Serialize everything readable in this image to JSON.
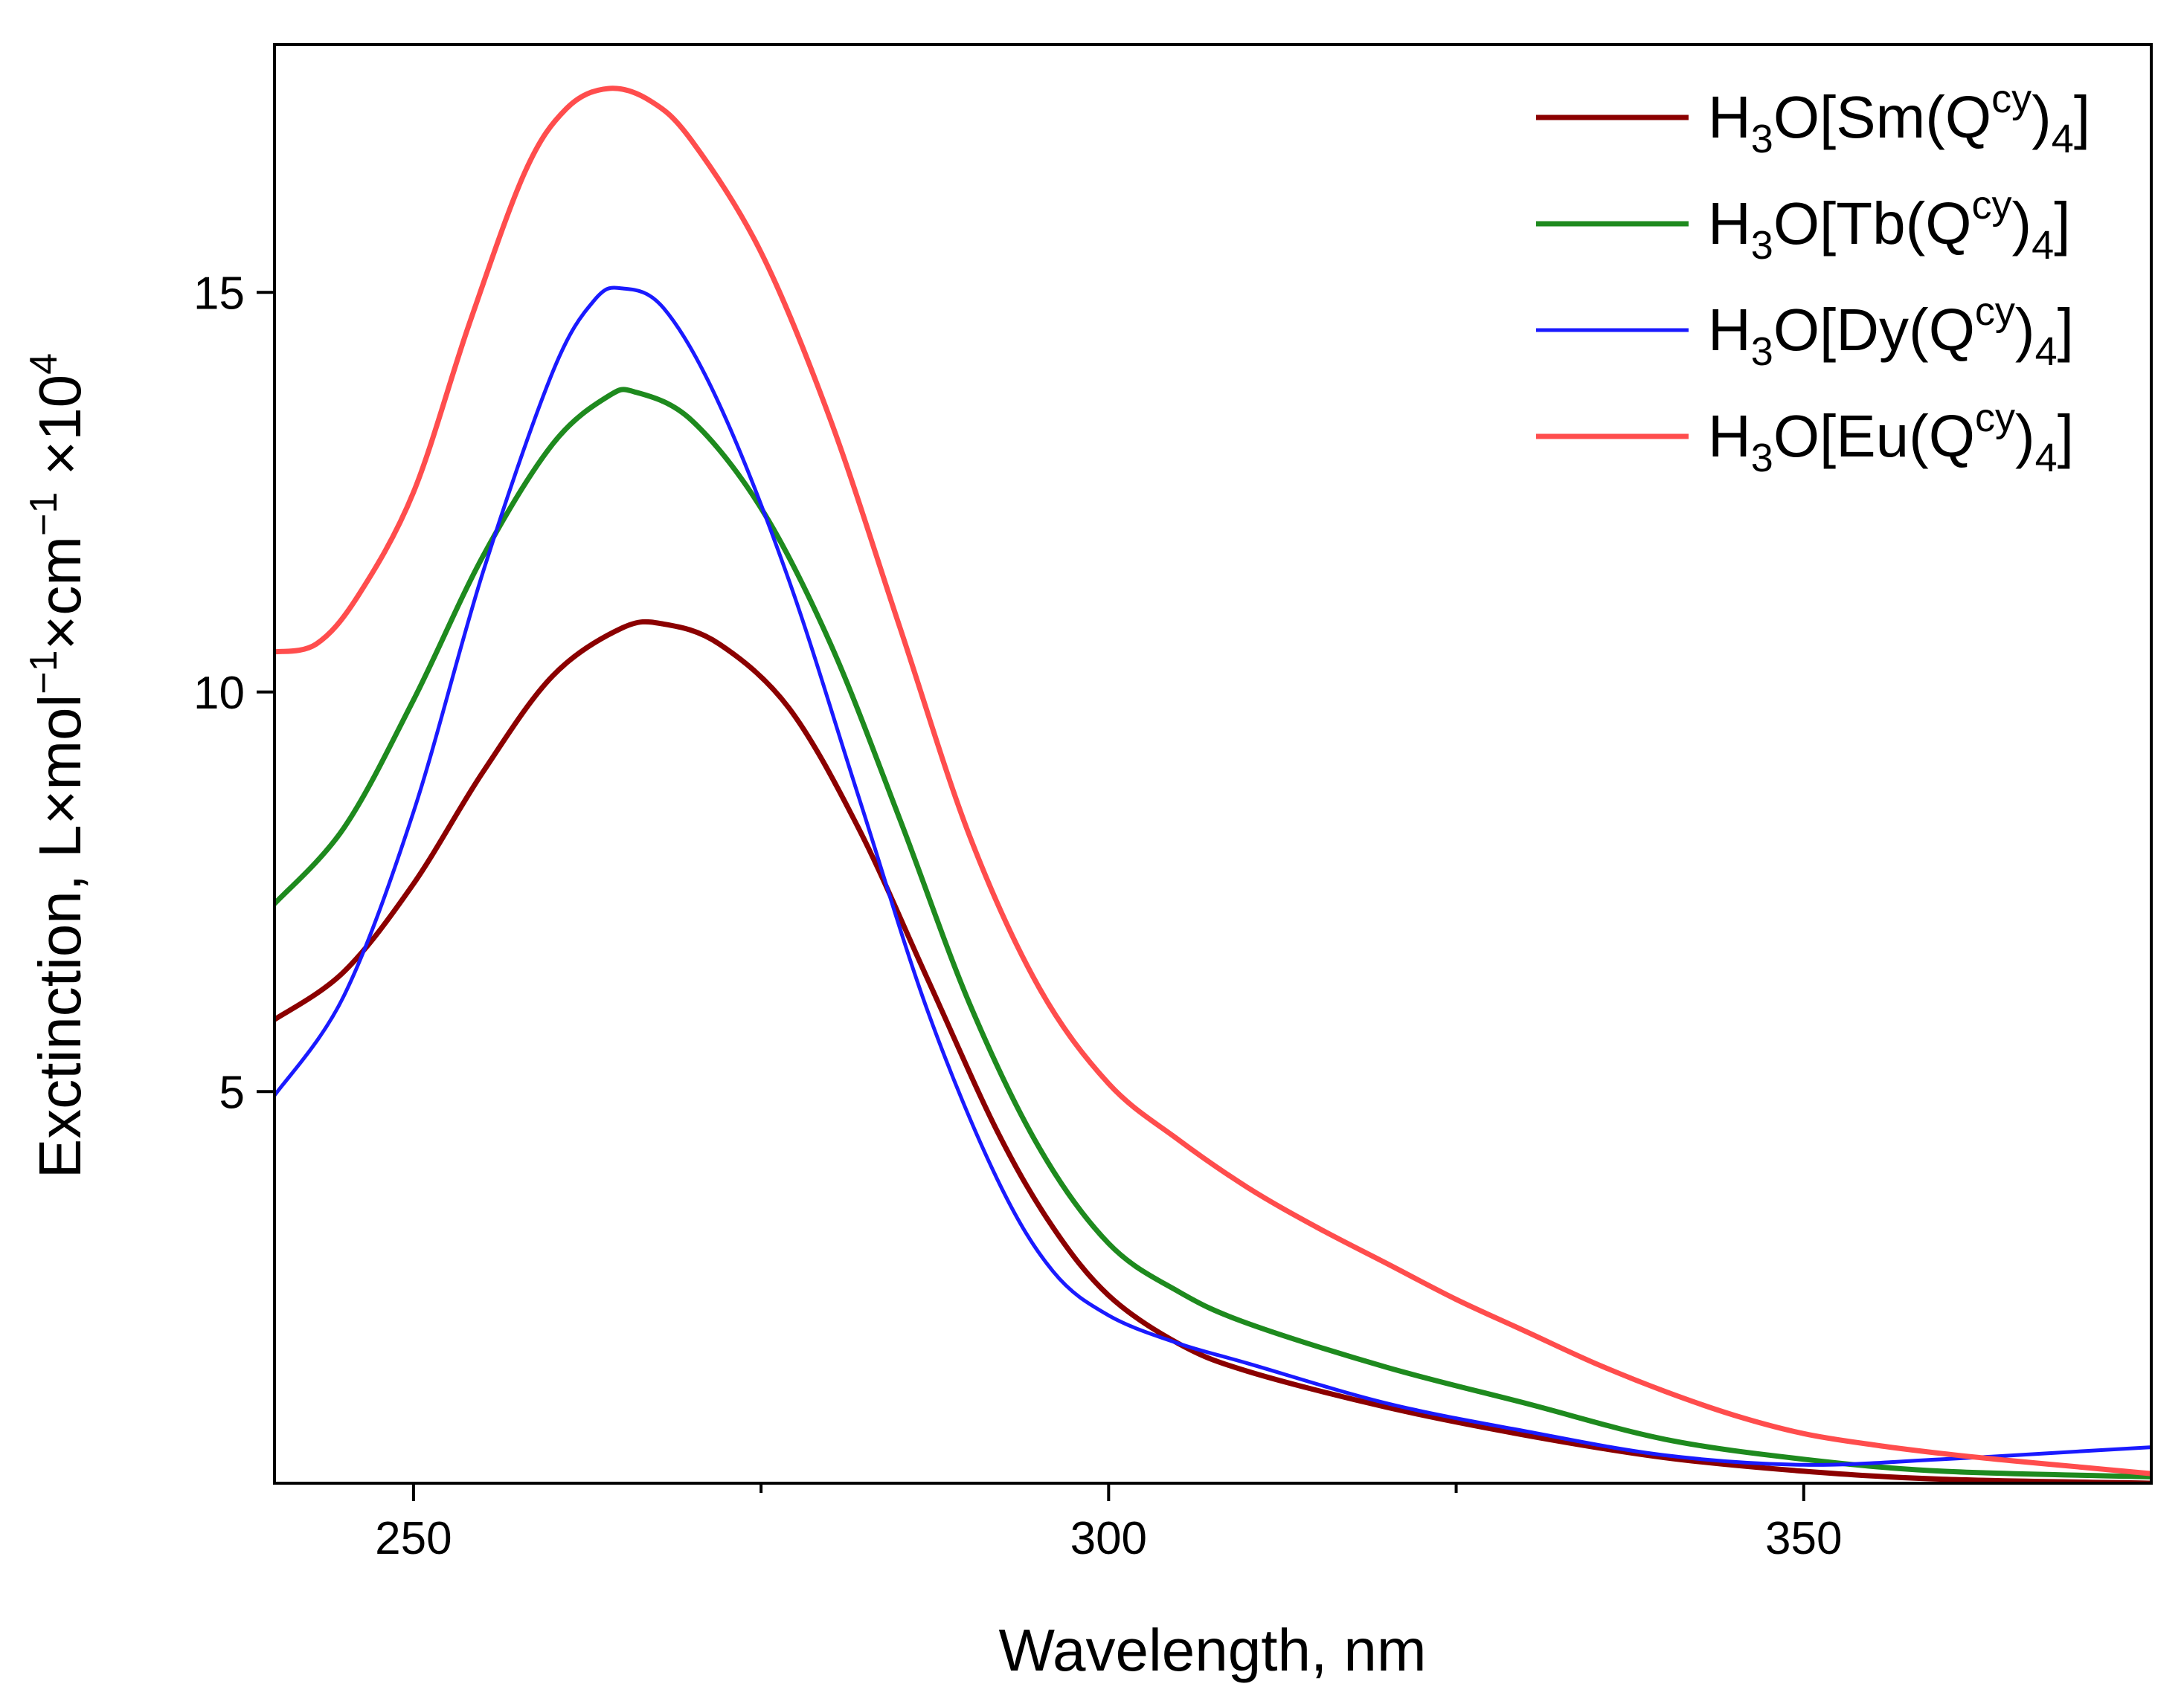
{
  "chart_data": {
    "type": "line",
    "xlabel": "Wavelength, nm",
    "ylabel": {
      "main": "Exctinction, L×mol",
      "sup1": "−1",
      "mid": "×cm",
      "sup2": "−1",
      "tail": " ×10",
      "sup3": "4"
    },
    "xlim": [
      240,
      375
    ],
    "ylim": [
      0.1,
      18.1
    ],
    "xticks_major": [
      250,
      300,
      350
    ],
    "xticks_minor": [
      275,
      325
    ],
    "yticks": [
      5,
      10,
      15
    ],
    "grid": false,
    "legend_position": "top-right",
    "series": [
      {
        "name": "H3O[Sm(Qcy)4]",
        "label_parts": {
          "pre": "H",
          "sub1": "3",
          "mid": "O[Sm(Q",
          "sup": "cy",
          "post": ")",
          "sub2": "4",
          "end": "]"
        },
        "color": "#8b0000",
        "width": 7,
        "points": [
          [
            240,
            5.9
          ],
          [
            245,
            6.5
          ],
          [
            250,
            7.6
          ],
          [
            255,
            9.0
          ],
          [
            260,
            10.2
          ],
          [
            265,
            10.8
          ],
          [
            268,
            10.85
          ],
          [
            272,
            10.6
          ],
          [
            277,
            9.8
          ],
          [
            282,
            8.3
          ],
          [
            287,
            6.4
          ],
          [
            292,
            4.5
          ],
          [
            296,
            3.3
          ],
          [
            300,
            2.45
          ],
          [
            305,
            1.85
          ],
          [
            310,
            1.5
          ],
          [
            320,
            1.05
          ],
          [
            330,
            0.7
          ],
          [
            340,
            0.42
          ],
          [
            350,
            0.25
          ],
          [
            360,
            0.15
          ],
          [
            375,
            0.1
          ]
        ]
      },
      {
        "name": "H3O[Tb(Qcy)4]",
        "label_parts": {
          "pre": "H",
          "sub1": "3",
          "mid": "O[Tb(Q",
          "sup": "cy",
          "post": ")",
          "sub2": "4",
          "end": "]"
        },
        "color": "#1e8a1e",
        "width": 7,
        "points": [
          [
            240,
            7.35
          ],
          [
            245,
            8.3
          ],
          [
            250,
            9.9
          ],
          [
            255,
            11.7
          ],
          [
            260,
            13.1
          ],
          [
            264,
            13.7
          ],
          [
            266,
            13.75
          ],
          [
            270,
            13.4
          ],
          [
            275,
            12.3
          ],
          [
            280,
            10.6
          ],
          [
            285,
            8.4
          ],
          [
            290,
            6.1
          ],
          [
            295,
            4.3
          ],
          [
            300,
            3.1
          ],
          [
            305,
            2.5
          ],
          [
            310,
            2.1
          ],
          [
            320,
            1.55
          ],
          [
            330,
            1.1
          ],
          [
            340,
            0.65
          ],
          [
            350,
            0.4
          ],
          [
            360,
            0.25
          ],
          [
            375,
            0.18
          ]
        ]
      },
      {
        "name": "H3O[Dy(Qcy)4]",
        "label_parts": {
          "pre": "H",
          "sub1": "3",
          "mid": "O[Dy(Q",
          "sup": "cy",
          "post": ")",
          "sub2": "4",
          "end": "]"
        },
        "color": "#1a1aff",
        "width": 5,
        "points": [
          [
            240,
            4.95
          ],
          [
            245,
            6.2
          ],
          [
            250,
            8.5
          ],
          [
            255,
            11.5
          ],
          [
            260,
            14.0
          ],
          [
            263,
            14.9
          ],
          [
            265,
            15.05
          ],
          [
            268,
            14.8
          ],
          [
            272,
            13.6
          ],
          [
            277,
            11.4
          ],
          [
            282,
            8.7
          ],
          [
            287,
            6.0
          ],
          [
            292,
            3.9
          ],
          [
            296,
            2.75
          ],
          [
            300,
            2.2
          ],
          [
            305,
            1.85
          ],
          [
            310,
            1.6
          ],
          [
            320,
            1.1
          ],
          [
            330,
            0.75
          ],
          [
            340,
            0.45
          ],
          [
            350,
            0.33
          ],
          [
            360,
            0.4
          ],
          [
            370,
            0.5
          ],
          [
            375,
            0.55
          ]
        ]
      },
      {
        "name": "H3O[Eu(Qcy)4]",
        "label_parts": {
          "pre": "H",
          "sub1": "3",
          "mid": "O[Eu(Q",
          "sup": "cy",
          "post": ")",
          "sub2": "4",
          "end": "]"
        },
        "color": "#ff4d4d",
        "width": 7,
        "points": [
          [
            240,
            10.5
          ],
          [
            243,
            10.6
          ],
          [
            246,
            11.2
          ],
          [
            250,
            12.5
          ],
          [
            254,
            14.6
          ],
          [
            258,
            16.5
          ],
          [
            261,
            17.3
          ],
          [
            264,
            17.55
          ],
          [
            267,
            17.4
          ],
          [
            270,
            16.9
          ],
          [
            275,
            15.5
          ],
          [
            280,
            13.4
          ],
          [
            285,
            10.8
          ],
          [
            290,
            8.2
          ],
          [
            295,
            6.3
          ],
          [
            300,
            5.1
          ],
          [
            305,
            4.4
          ],
          [
            310,
            3.8
          ],
          [
            315,
            3.3
          ],
          [
            320,
            2.85
          ],
          [
            325,
            2.4
          ],
          [
            330,
            2.0
          ],
          [
            335,
            1.6
          ],
          [
            340,
            1.25
          ],
          [
            345,
            0.95
          ],
          [
            350,
            0.72
          ],
          [
            355,
            0.58
          ],
          [
            360,
            0.47
          ],
          [
            365,
            0.38
          ],
          [
            370,
            0.3
          ],
          [
            375,
            0.22
          ]
        ]
      }
    ]
  }
}
